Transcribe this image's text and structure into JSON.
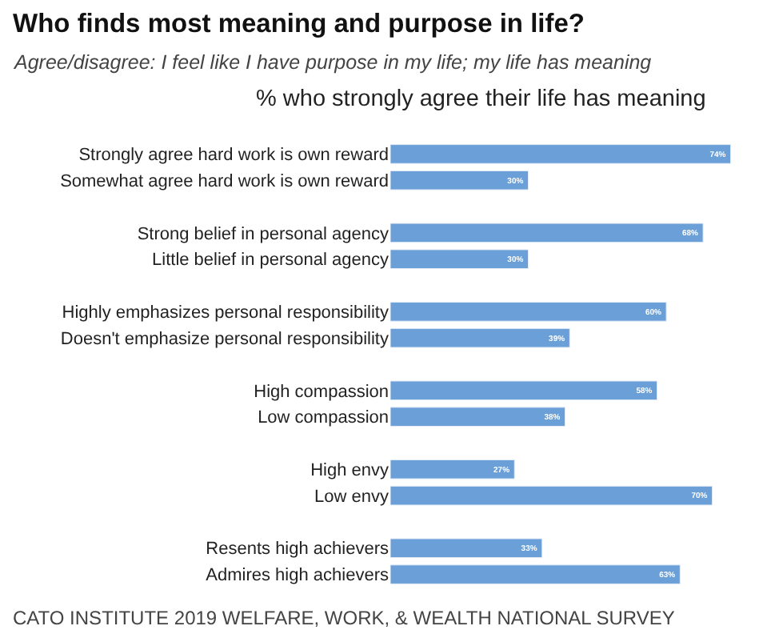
{
  "chart_data": {
    "type": "bar",
    "orientation": "horizontal",
    "title": "Who finds most meaning and purpose in life?",
    "subtitle": "Agree/disagree: I feel like I have purpose in my life; my life has meaning",
    "annotations": [
      "% who strongly agree their life has meaning",
      "CATO INSTITUTE 2019 WELFARE, WORK, & WEALTH NATIONAL SURVEY"
    ],
    "categories": [
      "Strongly agree hard work is own reward",
      "Somewhat agree hard work is own reward",
      null,
      "Strong belief in personal agency",
      "Little belief in personal agency",
      null,
      "Highly emphasizes personal responsibility",
      "Doesn't emphasize personal responsibility",
      null,
      "High compassion",
      "Low compassion",
      null,
      "High envy",
      "Low envy",
      null,
      "Resents high achievers",
      "Admires high achievers"
    ],
    "values": [
      74,
      30,
      null,
      68,
      30,
      null,
      60,
      39,
      null,
      58,
      38,
      null,
      27,
      70,
      null,
      33,
      63
    ],
    "value_labels": [
      "74%",
      "30%",
      null,
      "68%",
      "30%",
      null,
      "60%",
      "39%",
      null,
      "58%",
      "38%",
      null,
      "27%",
      "70%",
      null,
      "33%",
      "63%"
    ],
    "color": "#6a9fd8"
  }
}
